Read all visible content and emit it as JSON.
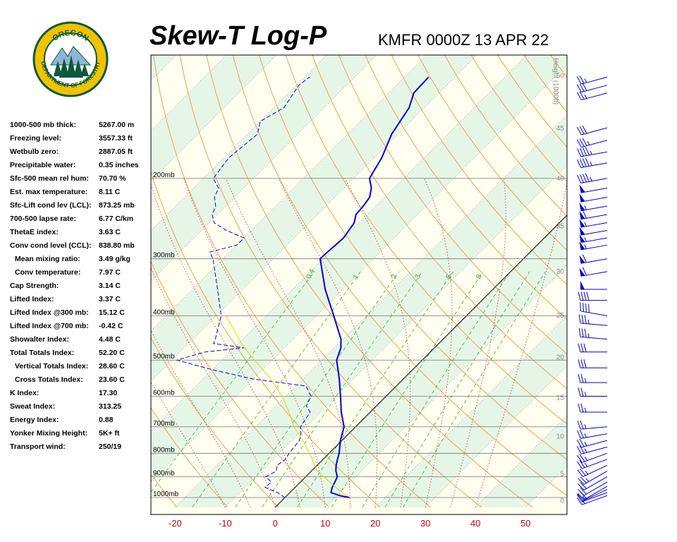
{
  "header": {
    "title": "Skew-T Log-P",
    "subtitle": "KMFR 0000Z 13 APR 22"
  },
  "logo": {
    "top_text": "OREGON",
    "ring_text": "DEPARTMENT OF FORESTRY",
    "ring_color": "#0b5a3a",
    "fill_color": "#f2c200"
  },
  "indices": [
    {
      "label": "1000-500 mb thick:",
      "value": "5267.00 m",
      "indent": false
    },
    {
      "label": "Freezing level:",
      "value": "3557.33 ft",
      "indent": false
    },
    {
      "label": "Wetbulb zero:",
      "value": "2887.05 ft",
      "indent": false
    },
    {
      "label": "Precipitable water:",
      "value": "0.35 inches",
      "indent": false
    },
    {
      "label": "Sfc-500 mean rel hum:",
      "value": "70.70 %",
      "indent": false
    },
    {
      "label": "Est. max temperature:",
      "value": "8.11 C",
      "indent": false
    },
    {
      "label": "Sfc-Lift cond lev (LCL):",
      "value": "873.25 mb",
      "indent": false
    },
    {
      "label": "700-500 lapse rate:",
      "value": "6.77 C/km",
      "indent": false
    },
    {
      "label": "ThetaE index:",
      "value": "3.63 C",
      "indent": false
    },
    {
      "label": "Conv cond level (CCL):",
      "value": "838.80 mb",
      "indent": false
    },
    {
      "label": "Mean mixing ratio:",
      "value": "3.49 g/kg",
      "indent": true
    },
    {
      "label": "Conv temperature:",
      "value": "7.97 C",
      "indent": true
    },
    {
      "label": "Cap Strength:",
      "value": "3.14 C",
      "indent": false
    },
    {
      "label": "Lifted Index:",
      "value": "3.37 C",
      "indent": false
    },
    {
      "label": "Lifted Index @300 mb:",
      "value": "15.12 C",
      "indent": false
    },
    {
      "label": "Lifted Index @700 mb:",
      "value": "-0.42 C",
      "indent": false
    },
    {
      "label": "Showalter Index:",
      "value": "4.48 C",
      "indent": false
    },
    {
      "label": "Total Totals Index:",
      "value": "52.20 C",
      "indent": false
    },
    {
      "label": "Vertical Totals Index:",
      "value": "28.60 C",
      "indent": true
    },
    {
      "label": "Cross Totals Index:",
      "value": "23.60 C",
      "indent": true
    },
    {
      "label": "K Index:",
      "value": "17.30",
      "indent": false
    },
    {
      "label": "Sweat Index:",
      "value": "313.25",
      "indent": false
    },
    {
      "label": "Energy Index:",
      "value": "0.88",
      "indent": false
    },
    {
      "label": "Yonker Mixing Height:",
      "value": "5K+ ft",
      "indent": false
    },
    {
      "label": "Transport wind:",
      "value": "250/19",
      "indent": false
    }
  ],
  "chart_data": {
    "type": "line",
    "title": "Skew-T Log-P",
    "subtitle": "KMFR 0000Z 13 APR 22",
    "x_axis": {
      "label": "",
      "unit": "C",
      "ticks": [
        -20,
        -10,
        0,
        10,
        20,
        30,
        40,
        50
      ]
    },
    "pressure_axis": {
      "scale": "log",
      "range_mb": [
        1050,
        100
      ],
      "labels": [
        {
          "p": 200,
          "label": "200mb"
        },
        {
          "p": 300,
          "label": "300mb"
        },
        {
          "p": 400,
          "label": "400mb"
        },
        {
          "p": 500,
          "label": "500mb"
        },
        {
          "p": 600,
          "label": "600mb"
        },
        {
          "p": 700,
          "label": "700mb"
        },
        {
          "p": 800,
          "label": "800mb"
        },
        {
          "p": 900,
          "label": "900mb"
        },
        {
          "p": 1000,
          "label": "1000mb"
        }
      ]
    },
    "height_axis": {
      "label": "Height (1000ft)",
      "ticks": [
        0,
        5,
        10,
        15,
        20,
        25,
        30,
        35,
        40,
        45,
        50
      ],
      "surface_offset_kft": 1.3
    },
    "mixing_ratio_labels": [
      "0.4",
      "1",
      "2",
      "3",
      "5",
      "8"
    ],
    "series": [
      {
        "name": "temperature",
        "color": "#0000cc",
        "style": "solid",
        "points": [
          [
            1000,
            13.0
          ],
          [
            990,
            10.5
          ],
          [
            975,
            8.2
          ],
          [
            950,
            7.4
          ],
          [
            925,
            6.9
          ],
          [
            900,
            6.3
          ],
          [
            875,
            4.9
          ],
          [
            850,
            3.8
          ],
          [
            825,
            2.9
          ],
          [
            800,
            2.0
          ],
          [
            750,
            -0.3
          ],
          [
            700,
            -2.3
          ],
          [
            650,
            -5.8
          ],
          [
            600,
            -9.1
          ],
          [
            550,
            -12.8
          ],
          [
            500,
            -17.1
          ],
          [
            470,
            -18.7
          ],
          [
            450,
            -20.4
          ],
          [
            400,
            -26.5
          ],
          [
            350,
            -33.5
          ],
          [
            300,
            -40.6
          ],
          [
            290,
            -40.5
          ],
          [
            270,
            -40.1
          ],
          [
            250,
            -41.0
          ],
          [
            240,
            -42.3
          ],
          [
            230,
            -42.5
          ],
          [
            220,
            -43.0
          ],
          [
            210,
            -44.5
          ],
          [
            200,
            -46.8
          ],
          [
            180,
            -48.5
          ],
          [
            160,
            -51.2
          ],
          [
            140,
            -53.0
          ],
          [
            130,
            -55.0
          ],
          [
            120,
            -55.2
          ]
        ]
      },
      {
        "name": "dewpoint",
        "color": "#0000cc",
        "style": "dashed",
        "points": [
          [
            1000,
            0.0
          ],
          [
            975,
            -2.5
          ],
          [
            950,
            -6.0
          ],
          [
            925,
            -5.8
          ],
          [
            900,
            -8.0
          ],
          [
            875,
            -7.0
          ],
          [
            850,
            -8.0
          ],
          [
            825,
            -7.5
          ],
          [
            800,
            -8.0
          ],
          [
            750,
            -8.5
          ],
          [
            725,
            -9.5
          ],
          [
            700,
            -11.0
          ],
          [
            650,
            -12.0
          ],
          [
            630,
            -14.0
          ],
          [
            600,
            -15.0
          ],
          [
            570,
            -18.0
          ],
          [
            550,
            -30.0
          ],
          [
            525,
            -40.0
          ],
          [
            500,
            -49.0
          ],
          [
            480,
            -45.0
          ],
          [
            470,
            -38.0
          ],
          [
            460,
            -45.0
          ],
          [
            450,
            -45.5
          ],
          [
            400,
            -49.0
          ],
          [
            350,
            -55.0
          ],
          [
            300,
            -62.0
          ],
          [
            290,
            -64.0
          ],
          [
            280,
            -60.0
          ],
          [
            270,
            -60.0
          ],
          [
            260,
            -65.0
          ],
          [
            250,
            -69.0
          ],
          [
            240,
            -71.0
          ],
          [
            230,
            -72.0
          ],
          [
            220,
            -74.0
          ],
          [
            210,
            -75.0
          ],
          [
            200,
            -78.0
          ],
          [
            180,
            -79.0
          ],
          [
            160,
            -78.0
          ],
          [
            150,
            -80.0
          ],
          [
            140,
            -78.0
          ],
          [
            130,
            -79.0
          ],
          [
            125,
            -79.5
          ],
          [
            120,
            -79.0
          ]
        ]
      },
      {
        "name": "parcel",
        "color": "#d8d800",
        "style": "solid",
        "points": [
          [
            1000,
            13.0
          ],
          [
            960,
            9.0
          ],
          [
            925,
            5.9
          ],
          [
            873,
            1.0
          ],
          [
            850,
            -0.5
          ],
          [
            800,
            -3.9
          ],
          [
            750,
            -7.8
          ],
          [
            700,
            -12.3
          ],
          [
            650,
            -16.2
          ],
          [
            600,
            -20.8
          ],
          [
            550,
            -26.5
          ],
          [
            500,
            -33.5
          ],
          [
            470,
            -38.0
          ],
          [
            450,
            -40.8
          ],
          [
            400,
            -48.0
          ]
        ]
      }
    ],
    "wind_barbs": [
      {
        "p": 990,
        "dir": 250,
        "spd": 15
      },
      {
        "p": 975,
        "dir": 250,
        "spd": 15
      },
      {
        "p": 960,
        "dir": 245,
        "spd": 15
      },
      {
        "p": 945,
        "dir": 240,
        "spd": 20
      },
      {
        "p": 925,
        "dir": 240,
        "spd": 20
      },
      {
        "p": 900,
        "dir": 240,
        "spd": 20
      },
      {
        "p": 875,
        "dir": 240,
        "spd": 25
      },
      {
        "p": 850,
        "dir": 245,
        "spd": 25
      },
      {
        "p": 825,
        "dir": 250,
        "spd": 25
      },
      {
        "p": 800,
        "dir": 250,
        "spd": 25
      },
      {
        "p": 775,
        "dir": 255,
        "spd": 25
      },
      {
        "p": 750,
        "dir": 255,
        "spd": 25
      },
      {
        "p": 725,
        "dir": 260,
        "spd": 25
      },
      {
        "p": 700,
        "dir": 265,
        "spd": 25
      },
      {
        "p": 650,
        "dir": 270,
        "spd": 25
      },
      {
        "p": 600,
        "dir": 270,
        "spd": 25
      },
      {
        "p": 560,
        "dir": 270,
        "spd": 25
      },
      {
        "p": 520,
        "dir": 270,
        "spd": 30
      },
      {
        "p": 480,
        "dir": 270,
        "spd": 30
      },
      {
        "p": 450,
        "dir": 275,
        "spd": 35
      },
      {
        "p": 420,
        "dir": 275,
        "spd": 35
      },
      {
        "p": 400,
        "dir": 280,
        "spd": 40
      },
      {
        "p": 370,
        "dir": 270,
        "spd": 40
      },
      {
        "p": 350,
        "dir": 270,
        "spd": 50
      },
      {
        "p": 320,
        "dir": 260,
        "spd": 60
      },
      {
        "p": 300,
        "dir": 260,
        "spd": 60
      },
      {
        "p": 280,
        "dir": 260,
        "spd": 55
      },
      {
        "p": 270,
        "dir": 260,
        "spd": 55
      },
      {
        "p": 260,
        "dir": 260,
        "spd": 50
      },
      {
        "p": 250,
        "dir": 260,
        "spd": 55
      },
      {
        "p": 240,
        "dir": 260,
        "spd": 60
      },
      {
        "p": 230,
        "dir": 260,
        "spd": 55
      },
      {
        "p": 220,
        "dir": 260,
        "spd": 50
      },
      {
        "p": 210,
        "dir": 260,
        "spd": 50
      },
      {
        "p": 200,
        "dir": 260,
        "spd": 45
      },
      {
        "p": 185,
        "dir": 260,
        "spd": 45
      },
      {
        "p": 175,
        "dir": 260,
        "spd": 45
      },
      {
        "p": 165,
        "dir": 255,
        "spd": 35
      },
      {
        "p": 155,
        "dir": 255,
        "spd": 30
      },
      {
        "p": 130,
        "dir": 255,
        "spd": 25
      },
      {
        "p": 125,
        "dir": 255,
        "spd": 30
      },
      {
        "p": 120,
        "dir": 255,
        "spd": 25
      }
    ]
  }
}
